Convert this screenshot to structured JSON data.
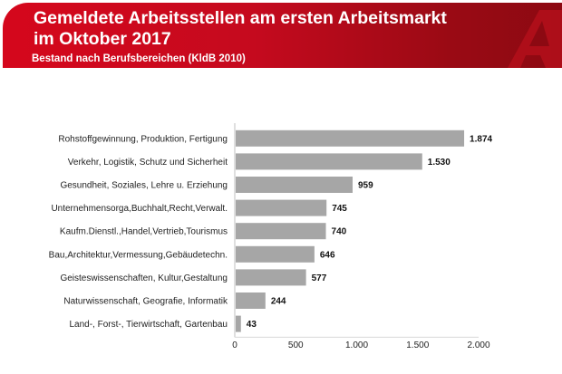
{
  "header": {
    "title": "Gemeldete Arbeitsstellen am ersten Arbeitsmarkt im Oktober 2017",
    "subtitle": "Bestand nach Berufsbereichen (KldB 2010)",
    "color": "#d5071c"
  },
  "chart_data": {
    "type": "bar",
    "orientation": "horizontal",
    "title": "Gemeldete Arbeitsstellen am ersten Arbeitsmarkt im Oktober 2017",
    "subtitle": "Bestand nach Berufsbereichen (KldB 2010)",
    "categories": [
      "Rohstoffgewinnung, Produktion, Fertigung",
      "Verkehr, Logistik, Schutz und Sicherheit",
      "Gesundheit, Soziales, Lehre u. Erziehung",
      "Unternehmensorga,Buchhalt,Recht,Verwalt.",
      "Kaufm.Dienstl.,Handel,Vertrieb,Tourismus",
      "Bau,Architektur,Vermessung,Gebäudetechn.",
      "Geisteswissenschaften, Kultur,Gestaltung",
      "Naturwissenschaft, Geografie, Informatik",
      "Land-, Forst-, Tierwirtschaft, Gartenbau"
    ],
    "values": [
      1874,
      1530,
      959,
      745,
      740,
      646,
      577,
      244,
      43
    ],
    "value_labels": [
      "1.874",
      "1.530",
      "959",
      "745",
      "740",
      "646",
      "577",
      "244",
      "43"
    ],
    "xlim": [
      0,
      2000
    ],
    "xticks": [
      0,
      500,
      1000,
      1500,
      2000
    ],
    "xtick_labels": [
      "0",
      "500",
      "1.000",
      "1.500",
      "2.000"
    ],
    "bar_color": "#a6a6a6",
    "grid": false,
    "legend": "none"
  }
}
